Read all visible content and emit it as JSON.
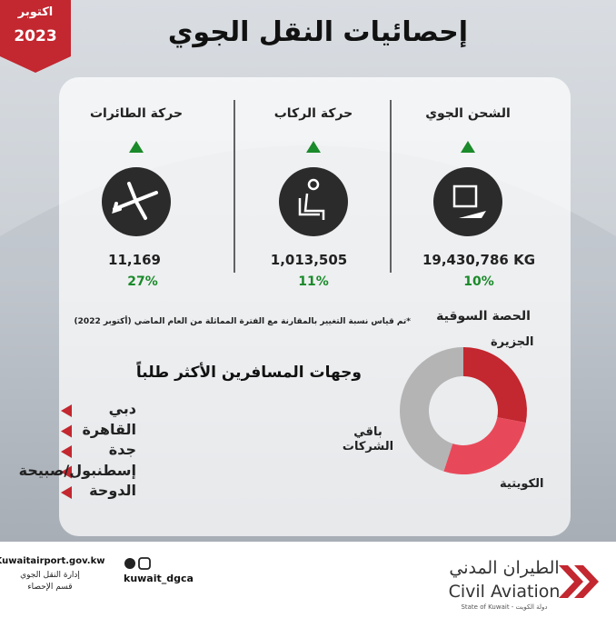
{
  "badge": {
    "month": "اكتوبر",
    "year": "2023"
  },
  "title": "إحصائيات النقل الجوي",
  "stats": [
    {
      "label": "الشحن الجوي",
      "value": "19,430,786 KG",
      "change": "10%"
    },
    {
      "label": "حركة الركاب",
      "value": "1,013,505",
      "change": "11%"
    },
    {
      "label": "حركة الطائرات",
      "value": "11,169",
      "change": "27%"
    }
  ],
  "note": "*تم قياس نسبة التغيير بالمقارنة مع الفترة المماثلة من العام الماضي (أكتوبر 2022)",
  "market_share": {
    "type": "pie",
    "title": "الحصة السوقية",
    "segments": [
      {
        "name": "الجزيرة",
        "color": "#c3272f",
        "value": 28
      },
      {
        "name": "الكويتية",
        "color": "#e8495a",
        "value": 27
      },
      {
        "name": "باقي الشركات",
        "color": "#b4b4b4",
        "value": 45
      }
    ]
  },
  "destinations": {
    "title": "وجهات المسافرين الأكثر طلباً",
    "items": [
      "دبي",
      "القاهرة",
      "جدة",
      "إسطنبول/صبيحة",
      "الدوحة"
    ]
  },
  "footer": {
    "website": "Kuwaitairport.gov.kw",
    "department": "إدارة النقل الجوي",
    "section": "قسم الإحصاء",
    "handle": "kuwait_dgca",
    "logo_ar": "الطيران المدني",
    "logo_en": "Civil Aviation",
    "logo_state": "State of Kuwait - دولة الكويت"
  }
}
